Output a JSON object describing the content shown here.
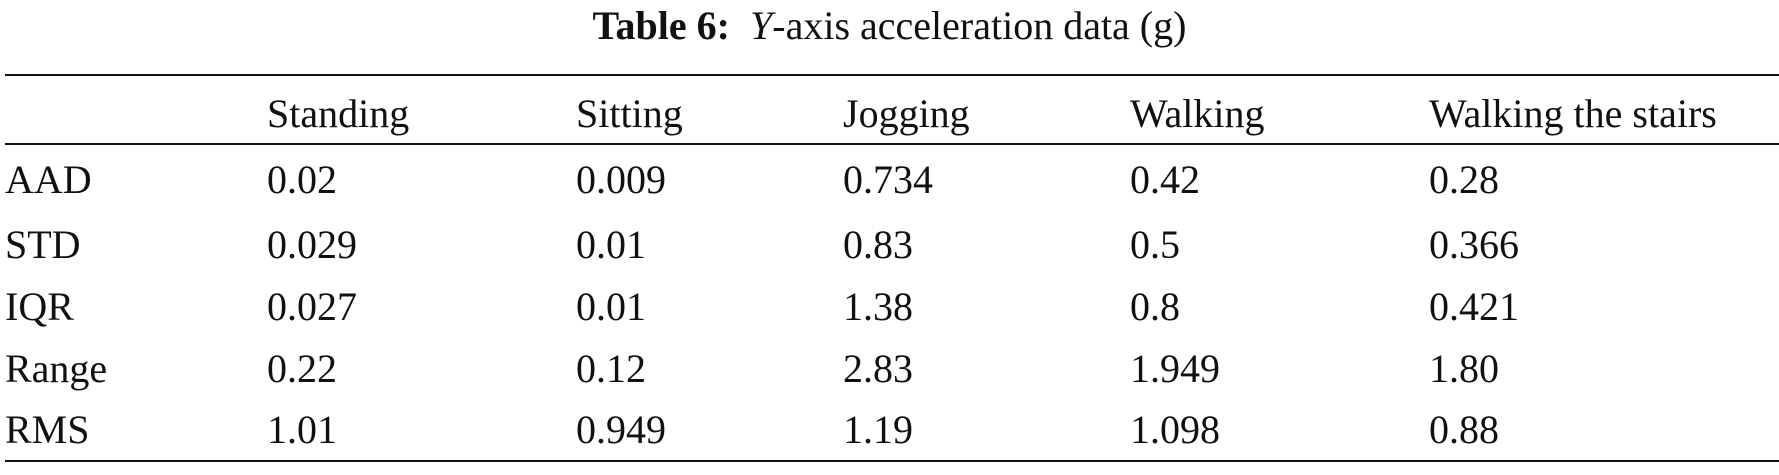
{
  "caption": {
    "label": "Table 6:",
    "variable": "Y",
    "text": "-axis acceleration data (g)"
  },
  "table": {
    "columns": [
      "",
      "Standing",
      "Sitting",
      "Jogging",
      "Walking",
      "Walking the stairs"
    ],
    "rows": [
      [
        "AAD",
        "0.02",
        "0.009",
        "0.734",
        "0.42",
        "0.28"
      ],
      [
        "STD",
        "0.029",
        "0.01",
        "0.83",
        "0.5",
        "0.366"
      ],
      [
        "IQR",
        "0.027",
        "0.01",
        "1.38",
        "0.8",
        "0.421"
      ],
      [
        "Range",
        "0.22",
        "0.12",
        "2.83",
        "1.949",
        "1.80"
      ],
      [
        "RMS",
        "1.01",
        "0.949",
        "1.19",
        "1.098",
        "0.88"
      ]
    ]
  }
}
